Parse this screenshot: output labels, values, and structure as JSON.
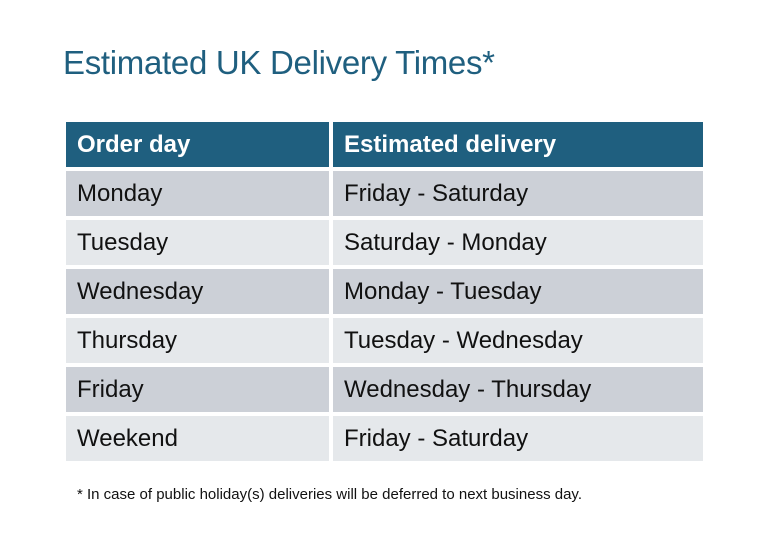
{
  "title": "Estimated UK Delivery Times*",
  "table": {
    "headers": [
      "Order day",
      "Estimated delivery"
    ],
    "rows": [
      [
        "Monday",
        "Friday - Saturday"
      ],
      [
        "Tuesday",
        "Saturday - Monday"
      ],
      [
        "Wednesday",
        "Monday - Tuesday"
      ],
      [
        "Thursday",
        "Tuesday - Wednesday"
      ],
      [
        "Friday",
        "Wednesday - Thursday"
      ],
      [
        "Weekend",
        "Friday - Saturday"
      ]
    ]
  },
  "footnote": "* In case of public holiday(s) deliveries will be deferred to next business day.",
  "colors": {
    "accent": "#1f5f7f",
    "row_dark": "#ccd0d7",
    "row_light": "#e5e8eb"
  }
}
